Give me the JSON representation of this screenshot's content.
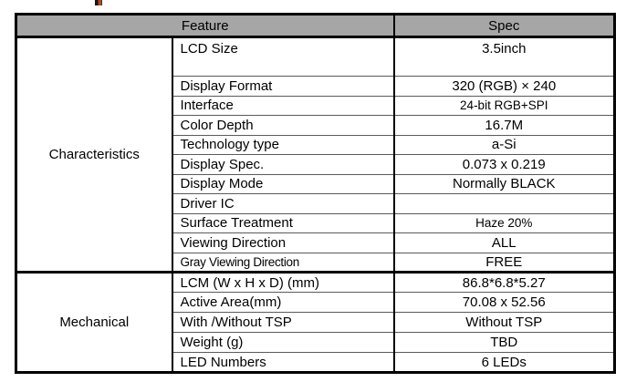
{
  "table": {
    "header": {
      "feature": "Feature",
      "spec": "Spec"
    },
    "groups": [
      {
        "label": "Characteristics",
        "rows": [
          {
            "feature": "LCD Size",
            "spec": "3.5inch"
          },
          {
            "feature": "Display Format",
            "spec": "320 (RGB) × 240"
          },
          {
            "feature": "Interface",
            "spec": "24-bit RGB+SPI"
          },
          {
            "feature": "Color Depth",
            "spec": "16.7M"
          },
          {
            "feature": "Technology type",
            "spec": "a-Si"
          },
          {
            "feature": "Display Spec.",
            "spec": "0.073 x 0.219"
          },
          {
            "feature": "Display Mode",
            "spec": "Normally BLACK"
          },
          {
            "feature": "Driver IC",
            "spec": ""
          },
          {
            "feature": "Surface Treatment",
            "spec": "Haze 20%"
          },
          {
            "feature": "Viewing Direction",
            "spec": "ALL"
          },
          {
            "feature": "Gray Viewing Direction",
            "spec": "FREE"
          }
        ]
      },
      {
        "label": "Mechanical",
        "rows": [
          {
            "feature": "LCM (W x H x D) (mm)",
            "spec": "86.8*6.8*5.27"
          },
          {
            "feature": "Active Area(mm)",
            "spec": "70.08 x 52.56"
          },
          {
            "feature": "With /Without TSP",
            "spec": "Without TSP"
          },
          {
            "feature": "Weight (g)",
            "spec": "TBD"
          },
          {
            "feature": "LED Numbers",
            "spec": "6 LEDs"
          }
        ]
      }
    ]
  },
  "colors": {
    "header_bg": "#a6a6a6",
    "border_black": "#000000",
    "row_line": "#5a5a5a"
  }
}
